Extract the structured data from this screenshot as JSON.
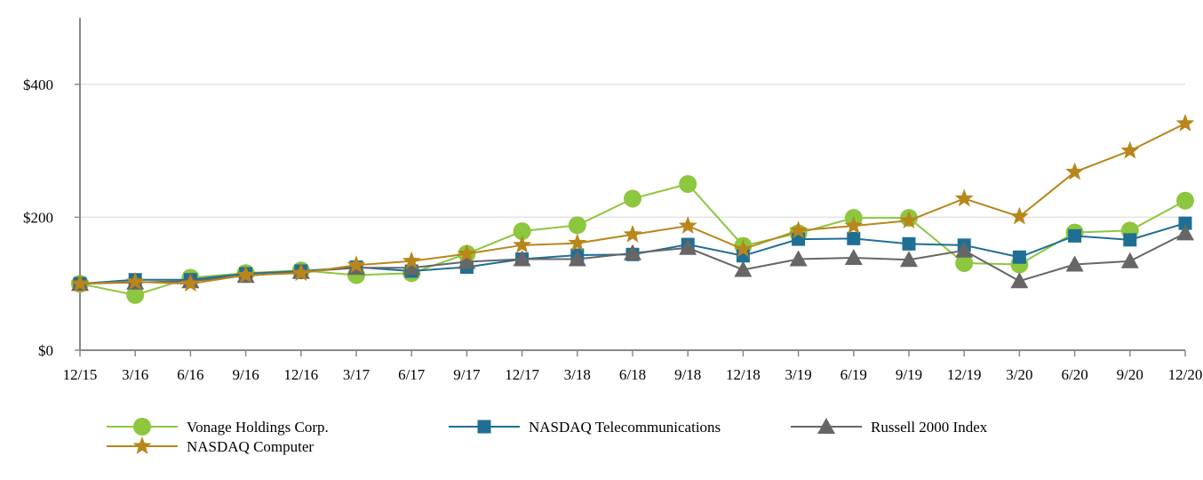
{
  "chart_data": {
    "type": "line",
    "title": "",
    "xlabel": "",
    "ylabel": "",
    "categories": [
      "12/15",
      "3/16",
      "6/16",
      "9/16",
      "12/16",
      "3/17",
      "6/17",
      "9/17",
      "12/17",
      "3/18",
      "6/18",
      "9/18",
      "12/18",
      "3/19",
      "6/19",
      "9/19",
      "12/19",
      "3/20",
      "6/20",
      "9/20",
      "12/20"
    ],
    "ylim": [
      0,
      500
    ],
    "yticks": [
      0,
      200,
      400
    ],
    "ytick_labels": [
      "$0",
      "$200",
      "$400"
    ],
    "grid": "horizontal",
    "legend_position": "bottom",
    "series": [
      {
        "name": "Vonage Holdings Corp.",
        "color": "#8dc63f",
        "marker": "circle",
        "values": [
          100,
          83,
          109,
          116,
          120,
          113,
          116,
          145,
          179,
          188,
          228,
          250,
          157,
          176,
          199,
          199,
          131,
          129,
          177,
          180,
          225
        ]
      },
      {
        "name": "NASDAQ Telecommunications",
        "color": "#1f6f94",
        "marker": "square",
        "values": [
          100,
          106,
          106,
          115,
          119,
          125,
          119,
          125,
          137,
          143,
          144,
          159,
          142,
          167,
          168,
          160,
          158,
          140,
          172,
          166,
          191
        ]
      },
      {
        "name": "Russell 2000 Index",
        "color": "#666666",
        "marker": "triangle",
        "values": [
          100,
          102,
          104,
          112,
          118,
          124,
          124,
          133,
          137,
          137,
          146,
          154,
          121,
          137,
          139,
          136,
          150,
          104,
          129,
          134,
          176
        ]
      },
      {
        "name": "NASDAQ Computer",
        "color": "#b8861b",
        "marker": "star",
        "values": [
          100,
          103,
          100,
          113,
          116,
          128,
          134,
          145,
          158,
          161,
          174,
          187,
          152,
          180,
          187,
          195,
          228,
          201,
          268,
          300,
          341
        ]
      }
    ]
  }
}
